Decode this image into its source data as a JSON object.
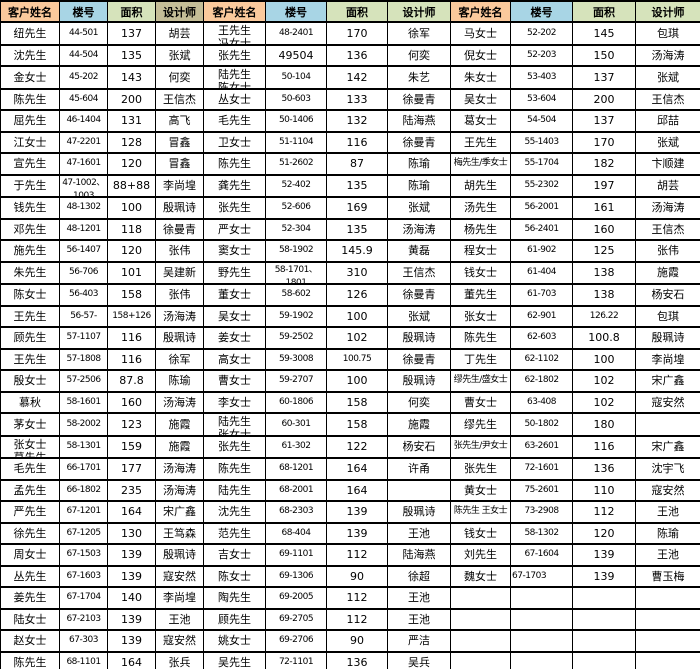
{
  "sheet": {
    "header_labels": {
      "name": "客户姓名",
      "bldg": "楼号",
      "area": "面积",
      "designer": "设计师"
    },
    "colors": {
      "header_name_bg": "#FAC99C",
      "header_bldg_bg": "#A8D5E5",
      "header_area_bg": "#D6E3BB",
      "header_designer_bg_group1": "#C4BD97",
      "header_designer_bg": "#D6E3BB",
      "grid_border": "#000000",
      "cell_bg": "#FFFFFF",
      "text": "#000000"
    },
    "groups": [
      {
        "designer_header_style": "olive",
        "rows": [
          {
            "name": "纽先生",
            "bldg": "44-501",
            "area": "137",
            "designer": "胡芸"
          },
          {
            "name": "沈先生",
            "bldg": "44-504",
            "area": "135",
            "designer": "张斌"
          },
          {
            "name": "金女士",
            "bldg": "45-202",
            "area": "143",
            "designer": "何奕"
          },
          {
            "name": "陈先生",
            "bldg": "45-604",
            "area": "200",
            "designer": "王信杰"
          },
          {
            "name": "屈先生",
            "bldg": "46-1404",
            "area": "131",
            "designer": "高飞"
          },
          {
            "name": "江女士",
            "bldg": "47-2201",
            "area": "128",
            "designer": "冒鑫"
          },
          {
            "name": "宣先生",
            "bldg": "47-1601",
            "area": "120",
            "designer": "冒鑫"
          },
          {
            "name": "于先生",
            "bldg": "47-1002、",
            "bldg2": "1003",
            "area": "88+88",
            "designer": "李尚堭"
          },
          {
            "name": "钱先生",
            "bldg": "48-1302",
            "area": "100",
            "designer": "殷珮诗"
          },
          {
            "name": "邓先生",
            "bldg": "48-1201",
            "area": "118",
            "designer": "徐曼青"
          },
          {
            "name": "施先生",
            "bldg": "56-1407",
            "area": "120",
            "designer": "张伟"
          },
          {
            "name": "朱先生",
            "bldg": "56-706",
            "area": "101",
            "designer": "吴建新"
          },
          {
            "name": "陈女士",
            "bldg": "56-403",
            "area": "158",
            "designer": "张伟"
          },
          {
            "name": "王先生",
            "bldg": "56-57-",
            "area": "158+126",
            "designer": "汤海涛"
          },
          {
            "name": "顾先生",
            "bldg": "57-1107",
            "area": "116",
            "designer": "殷珮诗"
          },
          {
            "name": "王先生",
            "bldg": "57-1808",
            "area": "116",
            "designer": "徐军"
          },
          {
            "name": "殷女士",
            "bldg": "57-2506",
            "area": "87.8",
            "designer": "陈瑜"
          },
          {
            "name": "慕秋",
            "bldg": "58-1601",
            "area": "160",
            "designer": "汤海涛"
          },
          {
            "name": "茅女士",
            "bldg": "58-2002",
            "area": "123",
            "designer": "施霞"
          },
          {
            "name": "张女士",
            "name2": "葛先生",
            "bldg": "58-1301",
            "area": "159",
            "designer": "施霞"
          },
          {
            "name": "毛先生",
            "bldg": "66-1701",
            "area": "177",
            "designer": "汤海涛"
          },
          {
            "name": "孟先生",
            "bldg": "66-1802",
            "area": "235",
            "designer": "汤海涛"
          },
          {
            "name": "严先生",
            "bldg": "67-1201",
            "area": "164",
            "designer": "宋广鑫"
          },
          {
            "name": "徐先生",
            "bldg": "67-1205",
            "area": "130",
            "designer": "王笃森"
          },
          {
            "name": "周女士",
            "bldg": "67-1503",
            "area": "139",
            "designer": "殷珮诗"
          },
          {
            "name": "丛先生",
            "bldg": "67-1603",
            "area": "139",
            "designer": "寇安然"
          },
          {
            "name": "姜先生",
            "bldg": "67-1704",
            "area": "140",
            "designer": "李尚堭"
          },
          {
            "name": "陆女士",
            "bldg": "67-2103",
            "area": "139",
            "designer": "王池"
          },
          {
            "name": "赵女士",
            "bldg": "67-303",
            "area": "139",
            "designer": "寇安然"
          },
          {
            "name": "陈先生",
            "bldg": "68-1101",
            "area": "164",
            "designer": "张兵"
          }
        ]
      },
      {
        "designer_header_style": "green",
        "rows": [
          {
            "name": "王先生",
            "name2": "冯女士",
            "bldg": "48-2401",
            "area": "170",
            "designer": "徐军"
          },
          {
            "name": "张先生",
            "bldg": "49504",
            "area": "136",
            "designer": "何奕"
          },
          {
            "name": "陆先生",
            "name2": "陈女士",
            "bldg": "50-104",
            "area": "142",
            "designer": "朱艺"
          },
          {
            "name": "丛女士",
            "bldg": "50-603",
            "area": "133",
            "designer": "徐曼青"
          },
          {
            "name": "毛先生",
            "bldg": "50-1406",
            "area": "132",
            "designer": "陆海燕"
          },
          {
            "name": "卫女士",
            "bldg": "51-1104",
            "area": "116",
            "designer": "徐曼青"
          },
          {
            "name": "陈先生",
            "bldg": "51-2602",
            "area": "87",
            "designer": "陈瑜"
          },
          {
            "name": "龚先生",
            "bldg": "52-402",
            "area": "135",
            "designer": "陈瑜"
          },
          {
            "name": "张先生",
            "bldg": "52-606",
            "area": "169",
            "designer": "张斌"
          },
          {
            "name": "严女士",
            "bldg": "52-304",
            "area": "135",
            "designer": "汤海涛"
          },
          {
            "name": "窦女士",
            "bldg": "58-1902",
            "area": "145.9",
            "designer": "黄磊"
          },
          {
            "name": "野先生",
            "bldg": "58-1701、",
            "bldg2": "1801",
            "area": "310",
            "designer": "王信杰"
          },
          {
            "name": "董女士",
            "bldg": "58-602",
            "area": "126",
            "designer": "徐曼青"
          },
          {
            "name": "吴女士",
            "bldg": "59-1902",
            "area": "100",
            "designer": "张斌"
          },
          {
            "name": "姜女士",
            "bldg": "59-2502",
            "area": "102",
            "designer": "殷珮诗"
          },
          {
            "name": "高女士",
            "bldg": "59-3008",
            "area": "100.75",
            "designer": "徐曼青"
          },
          {
            "name": "曹女士",
            "bldg": "59-2707",
            "area": "100",
            "designer": "殷珮诗"
          },
          {
            "name": "李女士",
            "bldg": "60-1806",
            "area": "158",
            "designer": "何奕"
          },
          {
            "name": "陆先生",
            "name2": "张女士",
            "bldg": "60-301",
            "area": "158",
            "designer": "施霞"
          },
          {
            "name": "张先生",
            "bldg": "61-302",
            "area": "122",
            "designer": "杨安石"
          },
          {
            "name": "陈先生",
            "bldg": "68-1201",
            "area": "164",
            "designer": "许甬"
          },
          {
            "name": "陆先生",
            "bldg": "68-2001",
            "area": "164",
            "designer": ""
          },
          {
            "name": "沈先生",
            "bldg": "68-2303",
            "area": "139",
            "designer": "殷珮诗"
          },
          {
            "name": "范先生",
            "bldg": "68-404",
            "area": "139",
            "designer": "王池"
          },
          {
            "name": "吉女士",
            "bldg": "69-1101",
            "area": "112",
            "designer": "陆海燕"
          },
          {
            "name": "陈女士",
            "bldg": "69-1306",
            "area": "90",
            "designer": "徐超"
          },
          {
            "name": "陶先生",
            "bldg": "69-2005",
            "area": "112",
            "designer": "王池"
          },
          {
            "name": "顾先生",
            "bldg": "69-2705",
            "area": "112",
            "designer": "王池"
          },
          {
            "name": "姚女士",
            "bldg": "69-2706",
            "area": "90",
            "designer": "严洁"
          },
          {
            "name": "吴先生",
            "bldg": "72-1101",
            "area": "136",
            "designer": "吴兵"
          }
        ]
      },
      {
        "designer_header_style": "green",
        "rows": [
          {
            "name": "马女士",
            "bldg": "52-202",
            "area": "145",
            "designer": "包琪"
          },
          {
            "name": "倪女士",
            "bldg": "52-203",
            "area": "150",
            "designer": "汤海涛"
          },
          {
            "name": "朱女士",
            "bldg": "53-403",
            "area": "137",
            "designer": "张斌"
          },
          {
            "name": "吴女士",
            "bldg": "53-604",
            "area": "200",
            "designer": "王信杰"
          },
          {
            "name": "葛女士",
            "bldg": "54-504",
            "area": "137",
            "designer": "邱喆"
          },
          {
            "name": "王先生",
            "bldg": "55-1403",
            "area": "170",
            "designer": "张斌"
          },
          {
            "name": "梅先生/季女士",
            "bldg": "55-1704",
            "area": "182",
            "designer": "卞顺建"
          },
          {
            "name": "胡先生",
            "bldg": "55-2302",
            "area": "197",
            "designer": "胡芸"
          },
          {
            "name": "汤先生",
            "bldg": "56-2001",
            "area": "161",
            "designer": "汤海涛"
          },
          {
            "name": "杨先生",
            "bldg": "56-2401",
            "area": "160",
            "designer": "王信杰"
          },
          {
            "name": "程女士",
            "bldg": "61-902",
            "area": "125",
            "designer": "张伟"
          },
          {
            "name": "钱女士",
            "bldg": "61-404",
            "area": "138",
            "designer": "施霞"
          },
          {
            "name": "董先生",
            "bldg": "61-703",
            "area": "138",
            "designer": "杨安石"
          },
          {
            "name": "张女士",
            "bldg": "62-901",
            "area": "126.22",
            "designer": "包琪"
          },
          {
            "name": "陈先生",
            "bldg": "62-603",
            "area": "100.8",
            "designer": "殷珮诗"
          },
          {
            "name": "丁先生",
            "bldg": "62-1102",
            "area": "100",
            "designer": "李尚堭"
          },
          {
            "name": "缪先生/盛女士",
            "bldg": "62-1802",
            "area": "102",
            "designer": "宋广鑫"
          },
          {
            "name": "曹女士",
            "bldg": "63-408",
            "area": "102",
            "designer": "寇安然"
          },
          {
            "name": "缪先生",
            "bldg": "50-1802",
            "area": "180",
            "designer": ""
          },
          {
            "name": "张先生/尹女士",
            "bldg": "63-2601",
            "area": "116",
            "designer": "宋广鑫"
          },
          {
            "name": "张先生",
            "bldg": "72-1601",
            "area": "136",
            "designer": "沈宇飞"
          },
          {
            "name": "黄女士",
            "bldg": "75-2601",
            "area": "110",
            "designer": "寇安然"
          },
          {
            "name": "陈先生 王女士",
            "bldg": "73-2908",
            "area": "112",
            "designer": "王池"
          },
          {
            "name": "钱女士",
            "bldg": "58-1302",
            "area": "120",
            "designer": "陈瑜"
          },
          {
            "name": "刘先生",
            "bldg": "67-1604",
            "area": "139",
            "designer": "王池"
          },
          {
            "name": "魏女士",
            "bldg": "67-1703",
            "bldg_left": true,
            "area": "139",
            "designer": "曹玉梅"
          },
          {
            "name": "",
            "bldg": "",
            "area": "",
            "designer": ""
          },
          {
            "name": "",
            "bldg": "",
            "area": "",
            "designer": ""
          },
          {
            "name": "",
            "bldg": "",
            "area": "",
            "designer": ""
          },
          {
            "name": "",
            "bldg": "",
            "area": "",
            "designer": ""
          }
        ]
      }
    ]
  }
}
